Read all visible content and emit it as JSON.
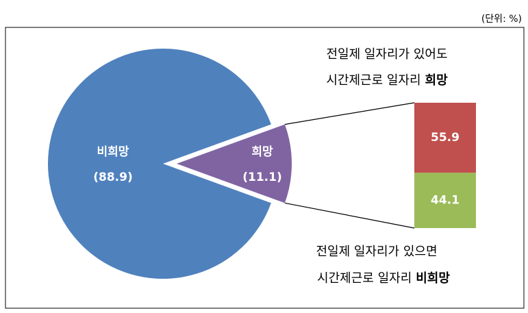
{
  "chart_data": {
    "type": "pie-of-bar",
    "unit_label": "(단위: %)",
    "categories": [
      "비희망",
      "희망"
    ],
    "values": [
      88.9,
      11.1
    ],
    "value_labels": [
      "(88.9)",
      "(11.1)"
    ],
    "colors": [
      "#4f81bd",
      "#8064a2"
    ],
    "bar": {
      "values": [
        55.9,
        44.1
      ],
      "colors": [
        "#c0504d",
        "#9bbb59"
      ]
    },
    "top_note": {
      "line1": "전일제 일자리가 있어도",
      "line2": "시간제근로 일자리",
      "emphasis": "희망"
    },
    "bottom_note": {
      "line1": "전일제 일자리가 있으면",
      "line2": "시간제근로 일자리",
      "emphasis": "비희망"
    }
  }
}
